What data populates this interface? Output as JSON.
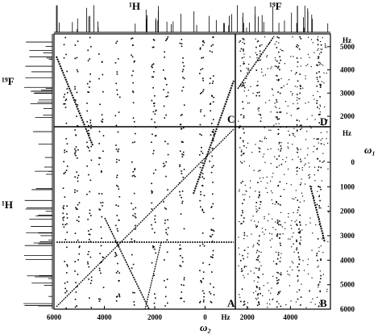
{
  "figure": {
    "spectrum_labels": {
      "top": [
        "¹H",
        "¹⁹F"
      ],
      "left": [
        "¹⁹F",
        "¹H"
      ]
    },
    "quadrant_labels": {
      "A": "A",
      "B": "B",
      "C": "C",
      "D": "D"
    },
    "x_axis_title": "ω₂",
    "y_axis_title": "ω₁",
    "axes": {
      "x_1H": {
        "lim": [
          6000,
          -1200
        ],
        "ticks": [
          6000,
          4000,
          2000,
          0
        ],
        "unit": "Hz"
      },
      "x_19F": {
        "lim": [
          1450,
          5850
        ],
        "ticks": [
          2000,
          4000
        ]
      },
      "y_19F": {
        "lim": [
          5550,
          1550
        ],
        "ticks": [
          5000,
          4000,
          3000,
          2000
        ],
        "unit": "Hz"
      },
      "y_1H": {
        "lim": [
          -1450,
          6000
        ],
        "ticks": [
          0,
          1000,
          2000,
          3000,
          4000,
          5000,
          6000
        ],
        "unit": "Hz"
      }
    }
  }
}
